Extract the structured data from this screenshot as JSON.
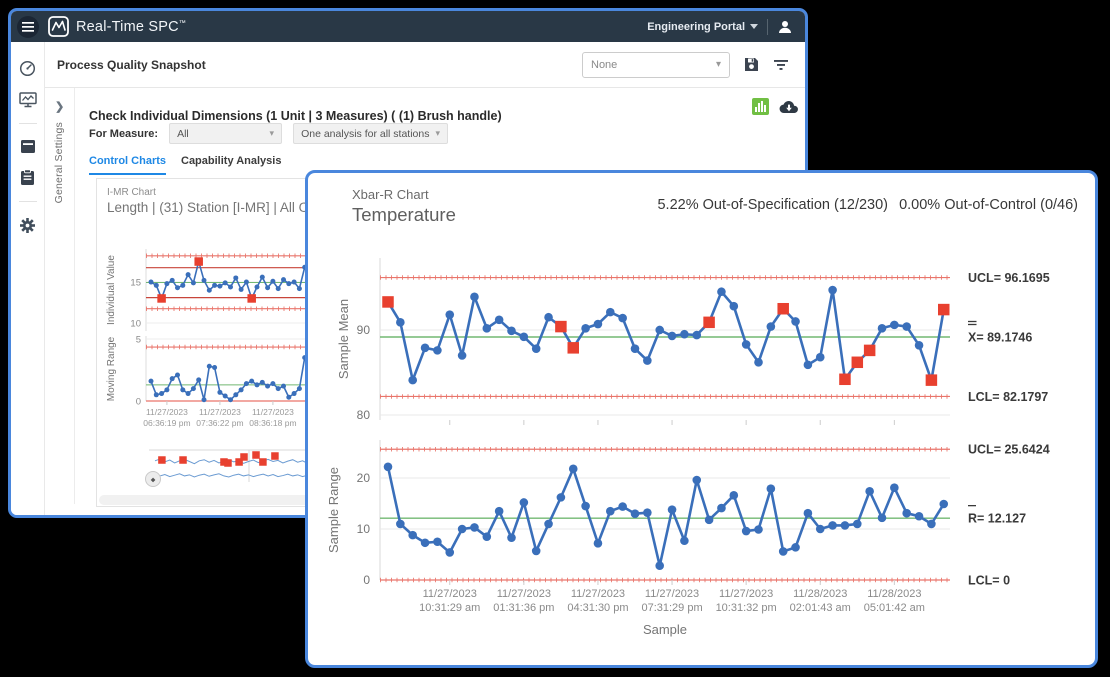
{
  "colors": {
    "window_border": "#4a87dd",
    "header_navy": "#293846",
    "tab_blue": "#1e88e5",
    "line_blue": "#3a6fba",
    "nav_blue": "#6b9bd2",
    "marker_red": "#e8402f",
    "limit_red": "#e9756b",
    "spec_red": "#c8453a",
    "center_green": "#72b872",
    "grid_gray": "#e8e8e8",
    "icon_dark": "#3c4450",
    "green_icon": "#71bf44"
  },
  "header": {
    "app_title": "Real-Time SPC",
    "trademark": "™",
    "portal_label": "Engineering Portal"
  },
  "toolbar": {
    "page_title": "Process Quality Snapshot",
    "report_dropdown_value": "None"
  },
  "sidebar": {
    "icons": [
      "dashboard-gauge-icon",
      "monitor-chart-icon",
      "storage-box-icon",
      "clipboard-icon",
      "settings-gear-icon"
    ]
  },
  "settings_strip": {
    "collapse_arrow": "❯",
    "label": "General Settings"
  },
  "panel": {
    "title": "Check Individual Dimensions (1 Unit | 3 Measures) ( (1) Brush handle)",
    "for_measure_label": "For Measure:",
    "measure_value": "All",
    "analysis_value": "One analysis for all stations",
    "tabs": [
      {
        "label": "Control Charts",
        "active": true
      },
      {
        "label": "Capability Analysis",
        "active": false
      }
    ]
  },
  "imr_header": {
    "type_label": "I-MR Chart",
    "title": "Length | (31) Station [I-MR] | All Operators"
  },
  "xbar_window": {
    "type_label": "Xbar-R Chart",
    "title": "Temperature",
    "out_of_spec": "5.22% Out-of-Specification (12/230)",
    "out_of_control": "0.00% Out-of-Control (0/46)"
  },
  "chart_data": [
    {
      "id": "xbar-r",
      "type": "line",
      "title": "Temperature",
      "xlabel": "Sample",
      "xticklabels": [
        [
          "11/27/2023",
          "10:31:29 am"
        ],
        [
          "11/27/2023",
          "01:31:36 pm"
        ],
        [
          "11/27/2023",
          "04:31:30 pm"
        ],
        [
          "11/27/2023",
          "07:31:29 pm"
        ],
        [
          "11/27/2023",
          "10:31:32 pm"
        ],
        [
          "11/28/2023",
          "02:01:43 am"
        ],
        [
          "11/28/2023",
          "05:01:42 am"
        ]
      ],
      "xtick_indices": [
        5,
        11,
        17,
        23,
        29,
        35,
        41
      ],
      "subcharts": [
        {
          "name": "sample-mean",
          "ylabel": "Sample Mean",
          "yticks": [
            90,
            80
          ],
          "ylim": [
            79.4,
            98.5
          ],
          "lines": {
            "ucl": 96.1695,
            "center": 89.1746,
            "lcl": 82.1797
          },
          "labels": {
            "ucl": "UCL= 96.1695",
            "center_symbol": "X",
            "center_bars": 2,
            "center": "= 89.1746",
            "lcl": "LCL= 82.1797"
          },
          "values": [
            93.3,
            90.9,
            84.1,
            87.9,
            87.6,
            91.8,
            87.0,
            93.9,
            90.2,
            91.2,
            89.9,
            89.2,
            87.8,
            91.5,
            90.4,
            87.9,
            90.2,
            90.7,
            92.1,
            91.4,
            87.8,
            86.4,
            90.0,
            89.3,
            89.5,
            89.4,
            90.9,
            94.5,
            92.8,
            88.3,
            86.2,
            90.4,
            92.5,
            91.0,
            85.9,
            86.8,
            94.7,
            84.2,
            86.2,
            87.6,
            90.2,
            90.6,
            90.4,
            88.2,
            84.1,
            92.4
          ],
          "out_indices": [
            0,
            14,
            15,
            26,
            32,
            37,
            38,
            39,
            44,
            45
          ]
        },
        {
          "name": "sample-range",
          "ylabel": "Sample Range",
          "yticks": [
            20,
            10,
            0
          ],
          "ylim": [
            0,
            27.5
          ],
          "lines": {
            "ucl": 25.6424,
            "center": 12.127,
            "lcl": 0
          },
          "labels": {
            "ucl": "UCL= 25.6424",
            "center_symbol": "R",
            "center_bars": 1,
            "center": "= 12.127",
            "lcl": "LCL= 0"
          },
          "values": [
            22.2,
            11.0,
            8.8,
            7.3,
            7.5,
            5.4,
            10.0,
            10.3,
            8.5,
            13.5,
            8.3,
            15.2,
            5.7,
            11.0,
            16.2,
            21.8,
            14.5,
            7.2,
            13.5,
            14.4,
            13.0,
            13.2,
            2.8,
            13.8,
            7.7,
            19.6,
            11.8,
            14.1,
            16.6,
            9.6,
            9.9,
            17.9,
            5.6,
            6.4,
            13.1,
            10.0,
            10.7,
            10.7,
            11.0,
            17.4,
            12.2,
            18.1,
            13.1,
            12.5,
            11.0,
            14.9
          ],
          "out_indices": []
        }
      ]
    },
    {
      "id": "imr",
      "type": "line",
      "title": "Length | (31) Station [I-MR] | All Operators",
      "xticklabels": [
        [
          "11/27/2023",
          "06:36:19 pm"
        ],
        [
          "11/27/2023",
          "07:36:22 pm"
        ],
        [
          "11/27/2023",
          "08:36:18 pm"
        ]
      ],
      "xtick_indices": [
        3,
        13,
        23
      ],
      "subcharts": [
        {
          "name": "individual-value",
          "ylabel": "Individual Value",
          "yticks": [
            15,
            10
          ],
          "ylim": [
            9.0,
            19.0
          ],
          "lines": {
            "usl": 18.2,
            "ucl": 16.75,
            "center": 14.95,
            "lcl": 13.1,
            "lsl": 11.75
          },
          "values": [
            15.0,
            14.6,
            13.0,
            14.8,
            15.2,
            14.3,
            14.6,
            15.9,
            14.9,
            17.5,
            15.2,
            14.0,
            14.6,
            14.5,
            14.9,
            14.4,
            15.5,
            14.1,
            15.0,
            13.0,
            14.4,
            15.6,
            14.3,
            15.1,
            14.2,
            15.3,
            14.8,
            15.0,
            14.2,
            16.8,
            15.2
          ],
          "out_indices": [
            2,
            9,
            19
          ]
        },
        {
          "name": "moving-range",
          "ylabel": "Moving Range",
          "yticks": [
            5,
            0
          ],
          "ylim": [
            0,
            5.5
          ],
          "lines": {
            "ucl": 4.35,
            "center": 1.3,
            "lcl": 0
          },
          "values": [
            1.6,
            0.5,
            0.6,
            0.9,
            1.8,
            2.1,
            0.9,
            0.6,
            1.0,
            1.7,
            0.1,
            2.8,
            2.7,
            0.7,
            0.4,
            0.1,
            0.5,
            0.9,
            1.4,
            1.6,
            1.3,
            1.5,
            1.2,
            1.4,
            1.0,
            1.2,
            0.3,
            0.6,
            1.0,
            3.5,
            2.4
          ],
          "out_indices": []
        }
      ]
    },
    {
      "id": "navigator",
      "type": "line",
      "series": [
        {
          "name": "overview-line-1",
          "values": [
            0.3,
            0.25,
            0.33,
            0.28,
            0.36,
            0.3,
            0.26,
            0.32,
            0.38,
            0.3,
            0.27,
            0.34,
            0.29,
            0.36,
            0.31,
            0.27,
            0.33,
            0.3,
            0.37,
            0.32,
            0.28,
            0.35,
            0.3,
            0.26,
            0.32,
            0.29,
            0.36,
            0.31,
            0.27,
            0.34,
            0.3,
            0.37,
            0.31,
            0.28,
            0.34,
            0.29,
            0.35,
            0.31
          ]
        },
        {
          "name": "overview-line-2",
          "values": [
            0.66,
            0.72,
            0.68,
            0.74,
            0.7,
            0.66,
            0.72,
            0.69,
            0.75,
            0.7,
            0.67,
            0.73,
            0.69,
            0.66,
            0.72,
            0.75,
            0.7,
            0.67,
            0.72,
            0.69,
            0.74,
            0.7,
            0.67,
            0.72,
            0.68,
            0.74,
            0.71,
            0.67,
            0.72,
            0.69,
            0.74,
            0.7,
            0.66,
            0.71,
            0.68,
            0.73,
            0.7,
            0.67
          ]
        }
      ],
      "out_marker_fractions": [
        [
          0.038,
          0.278
        ],
        [
          0.154,
          0.278
        ],
        [
          0.379,
          0.333
        ],
        [
          0.401,
          0.361
        ],
        [
          0.462,
          0.333
        ],
        [
          0.489,
          0.194
        ],
        [
          0.555,
          0.139
        ],
        [
          0.593,
          0.333
        ],
        [
          0.659,
          0.167
        ]
      ]
    }
  ]
}
